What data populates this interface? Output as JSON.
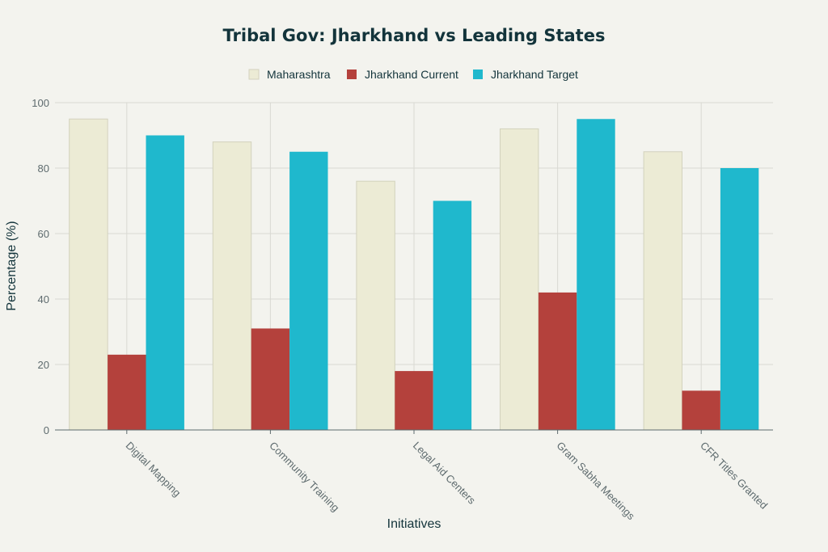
{
  "chart_data": {
    "type": "bar",
    "title": "Tribal Gov: Jharkhand vs Leading States",
    "xlabel": "Initiatives",
    "ylabel": "Percentage (%)",
    "ylim": [
      0,
      100
    ],
    "yticks": [
      0,
      20,
      40,
      60,
      80,
      100
    ],
    "categories": [
      "Digital Mapping",
      "Community Training",
      "Legal Aid Centers",
      "Gram Sabha Meetings",
      "CFR Titles Granted"
    ],
    "series": [
      {
        "name": "Maharashtra",
        "color": "#ecebd5",
        "values": [
          95,
          88,
          76,
          92,
          85
        ]
      },
      {
        "name": "Jharkhand Current",
        "color": "#b4413c",
        "values": [
          23,
          31,
          18,
          42,
          12
        ]
      },
      {
        "name": "Jharkhand Target",
        "color": "#1fb8cd",
        "values": [
          90,
          85,
          70,
          95,
          80
        ]
      }
    ],
    "legend_position": "top-center",
    "grid": true
  }
}
